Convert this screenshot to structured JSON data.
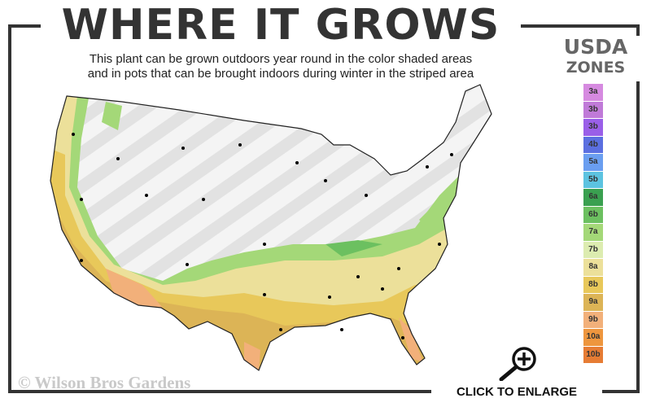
{
  "header": {
    "title": "WHERE IT GROWS",
    "subtitle_line1": "This plant can be grown outdoors year round in the color shaded areas",
    "subtitle_line2": "and in pots that can be brought indoors during winter in the striped area"
  },
  "legend": {
    "title_line1": "USDA",
    "title_line2": "ZONES",
    "zones": [
      {
        "label": "3a",
        "color": "#d68ae0"
      },
      {
        "label": "3b",
        "color": "#c07ad8"
      },
      {
        "label": "3b",
        "color": "#9a5fe8"
      },
      {
        "label": "4b",
        "color": "#5b6fe0"
      },
      {
        "label": "5a",
        "color": "#6a9ef0"
      },
      {
        "label": "5b",
        "color": "#5cc3e0"
      },
      {
        "label": "6a",
        "color": "#3aa050"
      },
      {
        "label": "6b",
        "color": "#6cc060"
      },
      {
        "label": "7a",
        "color": "#a4d878"
      },
      {
        "label": "7b",
        "color": "#dcecb0"
      },
      {
        "label": "8a",
        "color": "#ece09a"
      },
      {
        "label": "8b",
        "color": "#e8c85a"
      },
      {
        "label": "9a",
        "color": "#dcb456"
      },
      {
        "label": "9b",
        "color": "#f2b07a"
      },
      {
        "label": "10a",
        "color": "#ee963e"
      },
      {
        "label": "10b",
        "color": "#e67c34"
      }
    ]
  },
  "footer": {
    "copyright": "© Wilson Bros Gardens",
    "enlarge_label": "CLICK TO ENLARGE",
    "enlarge_icon": "magnifier-plus-icon"
  }
}
